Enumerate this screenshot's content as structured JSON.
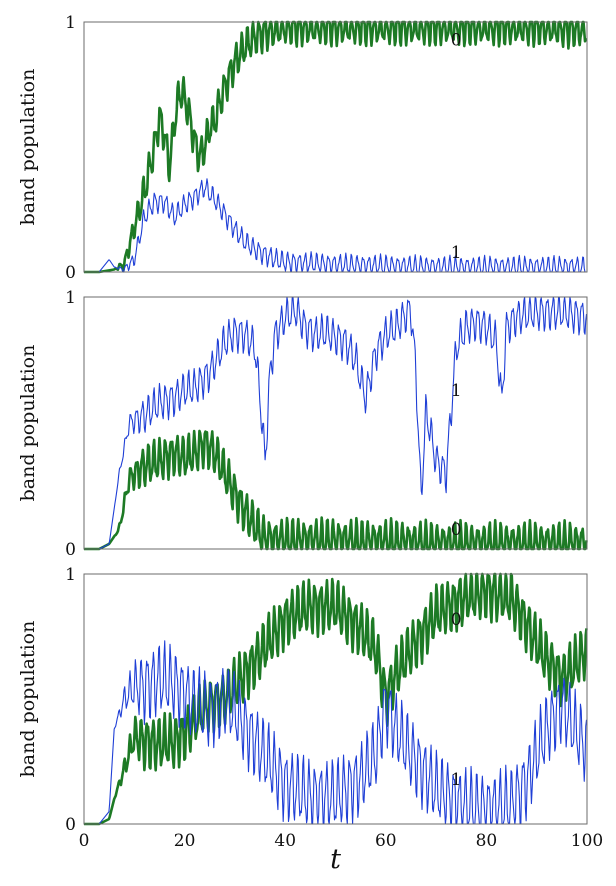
{
  "chart_data": {
    "x_label": "t",
    "x_range": [
      0,
      100
    ],
    "x_ticks": [
      "0",
      "20",
      "40",
      "60",
      "80",
      "100"
    ],
    "colors": {
      "band_0": "#1d7a25",
      "band_1": "#1f3fd6"
    },
    "panels": [
      {
        "type": "line",
        "ylabel": "band population",
        "ylim": [
          0,
          1
        ],
        "y_ticks": [
          "0",
          "1"
        ],
        "series": [
          {
            "name": "0",
            "label_value": "0",
            "color_key": "band_0",
            "label_at": [
              74,
              0.93
            ],
            "x": [
              0,
              3,
              6,
              8,
              10,
              12,
              14,
              15,
              16,
              17,
              18,
              19,
              20,
              21,
              22,
              23,
              24,
              25,
              26,
              27,
              28,
              30,
              32,
              34,
              36,
              38,
              40,
              45,
              50,
              55,
              60,
              70,
              80,
              90,
              100
            ],
            "y": [
              0,
              0,
              0.01,
              0.03,
              0.18,
              0.32,
              0.5,
              0.62,
              0.55,
              0.42,
              0.6,
              0.72,
              0.7,
              0.62,
              0.52,
              0.46,
              0.5,
              0.58,
              0.6,
              0.68,
              0.74,
              0.84,
              0.9,
              0.94,
              0.96,
              0.97,
              0.98,
              0.98,
              0.98,
              0.98,
              0.98,
              0.98,
              0.98,
              0.98,
              0.97
            ],
            "osc": 0.06
          },
          {
            "name": "1",
            "label_value": "1",
            "color_key": "band_1",
            "label_at": [
              74,
              0.08
            ],
            "x": [
              0,
              3,
              5,
              6,
              8,
              10,
              12,
              14,
              16,
              18,
              20,
              22,
              24,
              26,
              28,
              30,
              32,
              34,
              36,
              38,
              40,
              45,
              50,
              60,
              70,
              80,
              90,
              100
            ],
            "y": [
              0,
              0,
              0.05,
              0.02,
              0.01,
              0.05,
              0.22,
              0.28,
              0.28,
              0.22,
              0.27,
              0.3,
              0.34,
              0.29,
              0.23,
              0.17,
              0.12,
              0.09,
              0.07,
              0.05,
              0.04,
              0.035,
              0.03,
              0.025,
              0.02,
              0.02,
              0.02,
              0.02
            ],
            "osc": 0.035
          }
        ]
      },
      {
        "type": "line",
        "ylabel": "band population",
        "ylim": [
          0,
          1
        ],
        "y_ticks": [
          "0",
          "1"
        ],
        "series": [
          {
            "name": "1",
            "label_value": "1",
            "color_key": "band_1",
            "label_at": [
              74,
              0.63
            ],
            "x": [
              0,
              3,
              5,
              7,
              9,
              12,
              15,
              18,
              20,
              22,
              25,
              28,
              30,
              32,
              34,
              35,
              36,
              37,
              38,
              40,
              42,
              44,
              46,
              48,
              50,
              52,
              54,
              56,
              58,
              60,
              62,
              64,
              65,
              66,
              67,
              68,
              70,
              72,
              73,
              74,
              76,
              78,
              80,
              82,
              83,
              84,
              86,
              88,
              90,
              95,
              100
            ],
            "y": [
              0,
              0,
              0.02,
              0.3,
              0.5,
              0.53,
              0.58,
              0.6,
              0.63,
              0.64,
              0.7,
              0.82,
              0.86,
              0.85,
              0.8,
              0.6,
              0.35,
              0.7,
              0.85,
              0.92,
              0.95,
              0.88,
              0.85,
              0.86,
              0.84,
              0.82,
              0.75,
              0.6,
              0.78,
              0.85,
              0.88,
              0.93,
              0.95,
              0.7,
              0.2,
              0.55,
              0.35,
              0.3,
              0.55,
              0.8,
              0.88,
              0.9,
              0.88,
              0.82,
              0.58,
              0.88,
              0.92,
              0.93,
              0.94,
              0.94,
              0.92
            ],
            "osc": 0.06
          },
          {
            "name": "0",
            "label_value": "0",
            "color_key": "band_0",
            "label_at": [
              74,
              0.08
            ],
            "x": [
              0,
              3,
              5,
              7,
              9,
              12,
              15,
              18,
              20,
              22,
              24,
              26,
              28,
              30,
              32,
              34,
              36,
              38,
              40,
              45,
              50,
              55,
              60,
              65,
              70,
              80,
              90,
              100
            ],
            "y": [
              0,
              0,
              0.02,
              0.08,
              0.28,
              0.33,
              0.35,
              0.38,
              0.36,
              0.38,
              0.42,
              0.38,
              0.3,
              0.22,
              0.15,
              0.09,
              0.04,
              0.035,
              0.035,
              0.035,
              0.035,
              0.03,
              0.03,
              0.025,
              0.02,
              0.02,
              0.02,
              0.02
            ],
            "osc": 0.07
          }
        ]
      },
      {
        "type": "line",
        "ylabel": "band population",
        "ylim": [
          0,
          1
        ],
        "y_ticks": [
          "0",
          "1"
        ],
        "series": [
          {
            "name": "0",
            "label_value": "0",
            "color_key": "band_0",
            "label_at": [
              74,
              0.82
            ],
            "x": [
              0,
              3,
              5,
              6,
              8,
              10,
              12,
              15,
              18,
              20,
              22,
              25,
              28,
              30,
              35,
              40,
              45,
              50,
              55,
              58,
              60,
              62,
              65,
              70,
              75,
              80,
              85,
              88,
              90,
              92,
              95,
              97,
              100
            ],
            "y": [
              0,
              0,
              0.02,
              0.1,
              0.22,
              0.35,
              0.33,
              0.32,
              0.33,
              0.36,
              0.42,
              0.48,
              0.5,
              0.55,
              0.68,
              0.82,
              0.87,
              0.87,
              0.78,
              0.7,
              0.5,
              0.6,
              0.7,
              0.84,
              0.9,
              0.93,
              0.9,
              0.8,
              0.72,
              0.66,
              0.58,
              0.62,
              0.7
            ],
            "osc": 0.09
          },
          {
            "name": "1",
            "label_value": "1",
            "color_key": "band_1",
            "label_at": [
              74,
              0.18
            ],
            "x": [
              0,
              3,
              5,
              6,
              8,
              10,
              12,
              15,
              18,
              20,
              22,
              25,
              28,
              30,
              35,
              40,
              45,
              50,
              55,
              58,
              60,
              62,
              65,
              70,
              75,
              80,
              85,
              88,
              90,
              92,
              95,
              97,
              100
            ],
            "y": [
              0,
              0,
              0.05,
              0.38,
              0.5,
              0.55,
              0.55,
              0.58,
              0.56,
              0.52,
              0.48,
              0.45,
              0.5,
              0.45,
              0.3,
              0.16,
              0.11,
              0.11,
              0.18,
              0.28,
              0.48,
              0.38,
              0.28,
              0.14,
              0.08,
              0.06,
              0.08,
              0.17,
              0.28,
              0.38,
              0.48,
              0.4,
              0.3
            ],
            "osc": 0.12
          }
        ]
      }
    ]
  }
}
